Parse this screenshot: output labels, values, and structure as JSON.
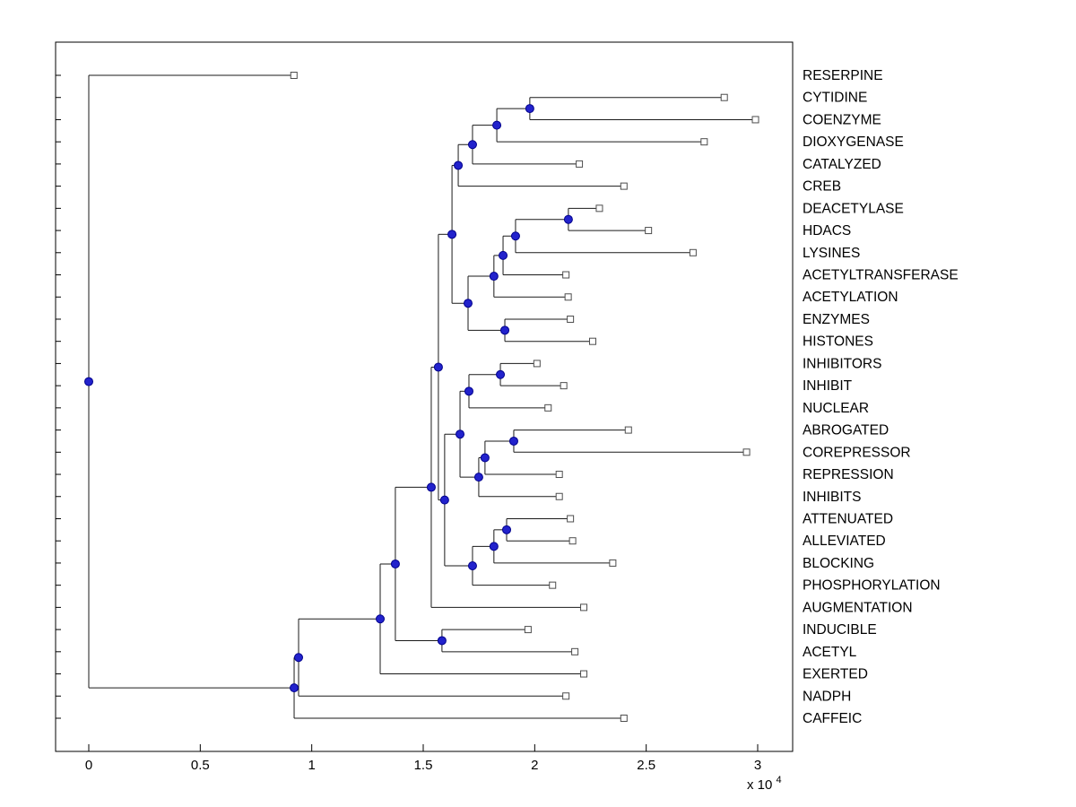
{
  "window": {
    "background": "#ffffff"
  },
  "chart_data": {
    "type": "dendrogram",
    "title": "",
    "orientation": "left-to-right",
    "legend": "none",
    "grid": false,
    "x_axis": {
      "unit_scale": 10000,
      "ticks": [
        0,
        0.5,
        1,
        1.5,
        2,
        2.5,
        3
      ],
      "tick_labels": [
        "0",
        "0.5",
        "1",
        "1.5",
        "2",
        "2.5",
        "3"
      ],
      "exponent_base": "x 10",
      "exponent": "4",
      "xlim": [
        -0.15,
        3.16
      ]
    },
    "style": {
      "line_color": "#1a1a1a",
      "node_fill": "#2222cc",
      "node_stroke": "#00008b",
      "leaf_fill": "#ffffff",
      "leaf_stroke": "#4d4d4d",
      "label_color": "#000000",
      "axis_color": "#000000"
    },
    "leaves": [
      {
        "id": "L0",
        "label": "RESERPINE",
        "x": 0.92
      },
      {
        "id": "L1",
        "label": "CYTIDINE",
        "x": 2.85
      },
      {
        "id": "L2",
        "label": "COENZYME",
        "x": 2.99
      },
      {
        "id": "L3",
        "label": "DIOXYGENASE",
        "x": 2.76
      },
      {
        "id": "L4",
        "label": "CATALYZED",
        "x": 2.2
      },
      {
        "id": "L5",
        "label": "CREB",
        "x": 2.4
      },
      {
        "id": "L6",
        "label": "DEACETYLASE",
        "x": 2.29
      },
      {
        "id": "L7",
        "label": "HDACS",
        "x": 2.51
      },
      {
        "id": "L8",
        "label": "LYSINES",
        "x": 2.71
      },
      {
        "id": "L9",
        "label": "ACETYLTRANSFERASE",
        "x": 2.14
      },
      {
        "id": "L10",
        "label": "ACETYLATION",
        "x": 2.15
      },
      {
        "id": "L11",
        "label": "ENZYMES",
        "x": 2.16
      },
      {
        "id": "L12",
        "label": "HISTONES",
        "x": 2.26
      },
      {
        "id": "L13",
        "label": "INHIBITORS",
        "x": 2.01
      },
      {
        "id": "L14",
        "label": "INHIBIT",
        "x": 2.13
      },
      {
        "id": "L15",
        "label": "NUCLEAR",
        "x": 2.06
      },
      {
        "id": "L16",
        "label": "ABROGATED",
        "x": 2.42
      },
      {
        "id": "L17",
        "label": "COREPRESSOR",
        "x": 2.95
      },
      {
        "id": "L18",
        "label": "REPRESSION",
        "x": 2.11
      },
      {
        "id": "L19",
        "label": "INHIBITS",
        "x": 2.11
      },
      {
        "id": "L20",
        "label": "ATTENUATED",
        "x": 2.16
      },
      {
        "id": "L21",
        "label": "ALLEVIATED",
        "x": 2.17
      },
      {
        "id": "L22",
        "label": "BLOCKING",
        "x": 2.35
      },
      {
        "id": "L23",
        "label": "PHOSPHORYLATION",
        "x": 2.08
      },
      {
        "id": "L24",
        "label": "AUGMENTATION",
        "x": 2.22
      },
      {
        "id": "L25",
        "label": "INDUCIBLE",
        "x": 1.97
      },
      {
        "id": "L26",
        "label": "ACETYL",
        "x": 2.18
      },
      {
        "id": "L27",
        "label": "EXERTED",
        "x": 2.22
      },
      {
        "id": "L28",
        "label": "NADPH",
        "x": 2.14
      },
      {
        "id": "L29",
        "label": "CAFFEIC",
        "x": 2.4
      }
    ],
    "nodes": [
      {
        "id": "n30",
        "x": 1.978,
        "children": [
          "L1",
          "L2"
        ]
      },
      {
        "id": "n31",
        "x": 1.83,
        "children": [
          "n30",
          "L3"
        ]
      },
      {
        "id": "n32",
        "x": 1.721,
        "children": [
          "n31",
          "L4"
        ]
      },
      {
        "id": "n33",
        "x": 1.657,
        "children": [
          "n32",
          "L5"
        ]
      },
      {
        "id": "n34",
        "x": 2.151,
        "children": [
          "L6",
          "L7"
        ]
      },
      {
        "id": "n35",
        "x": 1.914,
        "children": [
          "n34",
          "L8"
        ]
      },
      {
        "id": "n36",
        "x": 1.858,
        "children": [
          "n35",
          "L9"
        ]
      },
      {
        "id": "n37",
        "x": 1.817,
        "children": [
          "n36",
          "L10"
        ]
      },
      {
        "id": "n38",
        "x": 1.866,
        "children": [
          "L11",
          "L12"
        ]
      },
      {
        "id": "n39",
        "x": 1.701,
        "children": [
          "n37",
          "n38"
        ]
      },
      {
        "id": "n40",
        "x": 1.629,
        "children": [
          "n33",
          "n39"
        ]
      },
      {
        "id": "n41",
        "x": 1.846,
        "children": [
          "L13",
          "L14"
        ]
      },
      {
        "id": "n42",
        "x": 1.705,
        "children": [
          "n41",
          "L15"
        ]
      },
      {
        "id": "n43",
        "x": 1.906,
        "children": [
          "L16",
          "L17"
        ]
      },
      {
        "id": "n44",
        "x": 1.777,
        "children": [
          "n43",
          "L18"
        ]
      },
      {
        "id": "n45",
        "x": 1.749,
        "children": [
          "n44",
          "L19"
        ]
      },
      {
        "id": "n46",
        "x": 1.665,
        "children": [
          "n42",
          "n45"
        ]
      },
      {
        "id": "n47",
        "x": 1.874,
        "children": [
          "L20",
          "L21"
        ]
      },
      {
        "id": "n48",
        "x": 1.817,
        "children": [
          "n47",
          "L22"
        ]
      },
      {
        "id": "n49",
        "x": 1.721,
        "children": [
          "n48",
          "L23"
        ]
      },
      {
        "id": "n50",
        "x": 1.596,
        "children": [
          "n46",
          "n49"
        ]
      },
      {
        "id": "n51",
        "x": 1.568,
        "children": [
          "n40",
          "n50"
        ]
      },
      {
        "id": "n52",
        "x": 1.536,
        "children": [
          "n51",
          "L24"
        ]
      },
      {
        "id": "n53",
        "x": 1.584,
        "children": [
          "L25",
          "L26"
        ]
      },
      {
        "id": "n54",
        "x": 1.375,
        "children": [
          "n52",
          "n53"
        ]
      },
      {
        "id": "n55",
        "x": 1.307,
        "children": [
          "n54",
          "L27"
        ]
      },
      {
        "id": "n56",
        "x": 0.941,
        "children": [
          "n55",
          "L28"
        ]
      },
      {
        "id": "n57",
        "x": 0.921,
        "children": [
          "n56",
          "L29"
        ]
      },
      {
        "id": "n58",
        "x": 0.0,
        "children": [
          "L0",
          "n57"
        ]
      }
    ]
  }
}
